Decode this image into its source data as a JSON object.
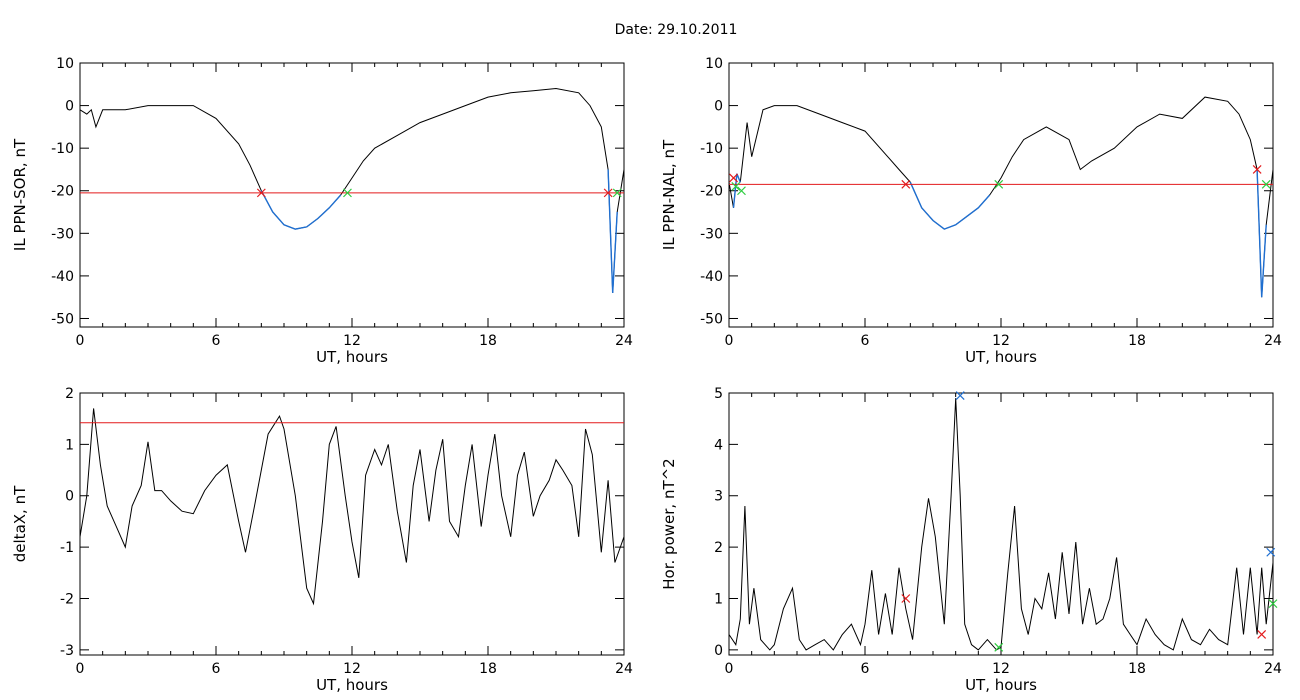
{
  "header": {
    "date_label": "Date:  29.10.2011"
  },
  "colors": {
    "trace": "#000000",
    "threshold": "#e31a1c",
    "highlight": "#1f6fd1",
    "marker_red": "#e31a1c",
    "marker_green": "#2ecc40",
    "marker_blue": "#1f6fd1"
  },
  "chart_data": [
    {
      "type": "line",
      "id": "il-sor",
      "xlabel": "UT, hours",
      "ylabel": "IL PPN-SOR, nT",
      "xlim": [
        0,
        24
      ],
      "ylim": [
        -52,
        10
      ],
      "xticks": [
        0,
        6,
        12,
        18,
        24
      ],
      "yticks": [
        10,
        0,
        -10,
        -20,
        -30,
        -40,
        -50
      ],
      "series": [
        {
          "x": [
            0,
            0.3,
            0.5,
            0.7,
            1,
            2,
            3,
            4,
            5,
            6,
            7,
            7.5,
            8,
            8.5,
            9,
            9.5,
            10,
            10.5,
            11,
            11.5,
            12,
            12.5,
            13,
            14,
            15,
            16,
            17,
            18,
            19,
            20,
            21,
            22,
            22.5,
            23,
            23.3,
            23.5,
            23.7,
            24
          ],
          "y": [
            -1,
            -2,
            -1,
            -5,
            -1,
            -1,
            0,
            0,
            0,
            -3,
            -9,
            -14,
            -20,
            -25,
            -28,
            -29,
            -28.5,
            -26.5,
            -24,
            -21,
            -17,
            -13,
            -10,
            -7,
            -4,
            -2,
            0,
            2,
            3,
            3.5,
            4,
            3,
            0,
            -5,
            -15,
            -44,
            -25,
            -15
          ]
        }
      ],
      "threshold": -20.5,
      "highlight_x": [
        [
          8,
          11.8
        ],
        [
          23.3,
          23.7
        ]
      ],
      "markers": [
        {
          "x": 8.0,
          "y": -20.5,
          "color": "red"
        },
        {
          "x": 11.8,
          "y": -20.5,
          "color": "green"
        },
        {
          "x": 23.3,
          "y": -20.5,
          "color": "red"
        },
        {
          "x": 23.7,
          "y": -20.5,
          "color": "green"
        }
      ]
    },
    {
      "type": "line",
      "id": "il-nal",
      "xlabel": "UT, hours",
      "ylabel": "IL PPN-NAL, nT",
      "xlim": [
        0,
        24
      ],
      "ylim": [
        -52,
        10
      ],
      "xticks": [
        0,
        6,
        12,
        18,
        24
      ],
      "yticks": [
        10,
        0,
        -10,
        -20,
        -30,
        -40,
        -50
      ],
      "series": [
        {
          "x": [
            0,
            0.2,
            0.35,
            0.5,
            0.8,
            1,
            1.5,
            2,
            3,
            4,
            5,
            6,
            7,
            7.5,
            8,
            8.5,
            9,
            9.5,
            10,
            10.5,
            11,
            11.5,
            12,
            12.5,
            13,
            14,
            15,
            15.5,
            16,
            17,
            18,
            19,
            20,
            21,
            22,
            22.5,
            23,
            23.3,
            23.5,
            23.7,
            24
          ],
          "y": [
            -18,
            -24,
            -16,
            -18,
            -4,
            -12,
            -1,
            0,
            0,
            -2,
            -4,
            -6,
            -12,
            -15,
            -18,
            -24,
            -27,
            -29,
            -28,
            -26,
            -24,
            -21,
            -17,
            -12,
            -8,
            -5,
            -8,
            -15,
            -13,
            -10,
            -5,
            -2,
            -3,
            2,
            1,
            -2,
            -8,
            -15,
            -45,
            -28,
            -15
          ]
        }
      ],
      "threshold": -18.5,
      "highlight_x": [
        [
          0.1,
          0.6
        ],
        [
          7.8,
          11.9
        ],
        [
          23.3,
          23.7
        ]
      ],
      "markers": [
        {
          "x": 0.2,
          "y": -17,
          "color": "red"
        },
        {
          "x": 0.3,
          "y": -19,
          "color": "green"
        },
        {
          "x": 0.55,
          "y": -20,
          "color": "green"
        },
        {
          "x": 7.8,
          "y": -18.5,
          "color": "red"
        },
        {
          "x": 11.9,
          "y": -18.5,
          "color": "green"
        },
        {
          "x": 23.3,
          "y": -15,
          "color": "red"
        },
        {
          "x": 23.7,
          "y": -18.5,
          "color": "green"
        }
      ]
    },
    {
      "type": "line",
      "id": "deltax",
      "xlabel": "UT, hours",
      "ylabel": "deltaX, nT",
      "xlim": [
        0,
        24
      ],
      "ylim": [
        -3.1,
        2
      ],
      "xticks": [
        0,
        6,
        12,
        18,
        24
      ],
      "yticks": [
        2,
        1,
        0,
        -1,
        -2,
        -3
      ],
      "series": [
        {
          "x": [
            0,
            0.3,
            0.6,
            0.9,
            1.2,
            1.6,
            2,
            2.3,
            2.7,
            3,
            3.3,
            3.6,
            4,
            4.5,
            5,
            5.5,
            6,
            6.5,
            7,
            7.3,
            7.7,
            8,
            8.3,
            8.8,
            9,
            9.5,
            10,
            10.3,
            10.7,
            11,
            11.3,
            11.7,
            12,
            12.3,
            12.6,
            13,
            13.3,
            13.6,
            14,
            14.4,
            14.7,
            15,
            15.4,
            15.7,
            16,
            16.3,
            16.7,
            17,
            17.3,
            17.7,
            18,
            18.3,
            18.6,
            19,
            19.3,
            19.6,
            20,
            20.3,
            20.7,
            21,
            21.3,
            21.7,
            22,
            22.3,
            22.6,
            23,
            23.3,
            23.6,
            24
          ],
          "y": [
            -0.8,
            0,
            1.7,
            0.6,
            -0.2,
            -0.6,
            -1,
            -0.2,
            0.2,
            1.05,
            0.1,
            0.1,
            -0.1,
            -0.3,
            -0.35,
            0.1,
            0.4,
            0.6,
            -0.5,
            -1.1,
            -0.2,
            0.5,
            1.2,
            1.55,
            1.3,
            0,
            -1.8,
            -2.1,
            -0.5,
            1.0,
            1.35,
            0,
            -0.9,
            -1.6,
            0.4,
            0.9,
            0.6,
            1.0,
            -0.3,
            -1.3,
            0.2,
            0.9,
            -0.5,
            0.5,
            1.1,
            -0.5,
            -0.8,
            0.2,
            1.0,
            -0.6,
            0.4,
            1.2,
            0,
            -0.8,
            0.4,
            0.85,
            -0.4,
            0,
            0.3,
            0.7,
            0.5,
            0.2,
            -0.8,
            1.3,
            0.8,
            -1.1,
            0.3,
            -1.3,
            -0.8
          ]
        }
      ],
      "threshold": 1.42,
      "highlight_x": [],
      "markers": []
    },
    {
      "type": "line",
      "id": "hor-power",
      "xlabel": "UT, hours",
      "ylabel": "Hor. power, nT^2",
      "xlim": [
        0,
        24
      ],
      "ylim": [
        -0.1,
        5
      ],
      "xticks": [
        0,
        6,
        12,
        18,
        24
      ],
      "yticks": [
        5,
        4,
        3,
        2,
        1,
        0
      ],
      "series": [
        {
          "x": [
            0,
            0.3,
            0.5,
            0.7,
            0.9,
            1.1,
            1.4,
            1.8,
            2,
            2.4,
            2.8,
            3.1,
            3.4,
            3.8,
            4.2,
            4.6,
            5,
            5.4,
            5.8,
            6,
            6.3,
            6.6,
            6.9,
            7.2,
            7.5,
            7.8,
            8.1,
            8.5,
            8.8,
            9.1,
            9.5,
            9.8,
            10,
            10.2,
            10.4,
            10.7,
            11,
            11.4,
            11.8,
            12,
            12.3,
            12.6,
            12.9,
            13.2,
            13.5,
            13.8,
            14.1,
            14.4,
            14.7,
            15,
            15.3,
            15.6,
            15.9,
            16.2,
            16.5,
            16.8,
            17.1,
            17.4,
            17.7,
            18,
            18.4,
            18.8,
            19.2,
            19.6,
            20,
            20.4,
            20.8,
            21.2,
            21.6,
            22,
            22.4,
            22.7,
            23,
            23.3,
            23.5,
            23.7,
            24
          ],
          "y": [
            0.3,
            0.1,
            0.6,
            2.8,
            0.5,
            1.2,
            0.2,
            0,
            0.1,
            0.8,
            1.2,
            0.2,
            0,
            0.1,
            0.2,
            0,
            0.3,
            0.5,
            0.1,
            0.5,
            1.55,
            0.3,
            1.1,
            0.3,
            1.6,
            0.8,
            0.2,
            2.0,
            2.95,
            2.2,
            0.5,
            3.0,
            4.9,
            3.0,
            0.5,
            0.1,
            0,
            0.2,
            0,
            0.05,
            1.5,
            2.8,
            0.8,
            0.3,
            1.0,
            0.8,
            1.5,
            0.6,
            1.9,
            0.7,
            2.1,
            0.5,
            1.2,
            0.5,
            0.6,
            1.0,
            1.8,
            0.5,
            0.3,
            0.1,
            0.6,
            0.3,
            0.1,
            0,
            0.6,
            0.2,
            0.1,
            0.4,
            0.2,
            0.1,
            1.6,
            0.3,
            1.6,
            0.3,
            1.6,
            0.5,
            1.7
          ]
        }
      ],
      "threshold": null,
      "highlight_x": [],
      "markers": [
        {
          "x": 10.2,
          "y": 4.95,
          "color": "blue"
        },
        {
          "x": 23.9,
          "y": 1.9,
          "color": "blue"
        },
        {
          "x": 7.8,
          "y": 1.0,
          "color": "red"
        },
        {
          "x": 11.9,
          "y": 0.05,
          "color": "green"
        },
        {
          "x": 23.5,
          "y": 0.3,
          "color": "red"
        },
        {
          "x": 24.0,
          "y": 0.9,
          "color": "green"
        }
      ]
    }
  ]
}
